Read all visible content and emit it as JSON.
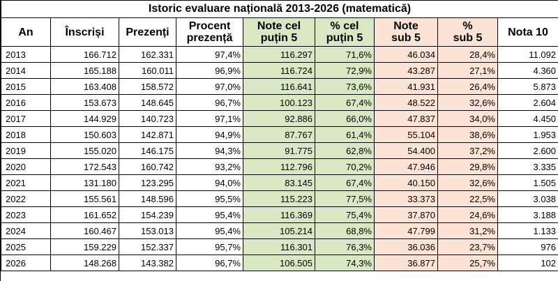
{
  "table": {
    "title": "Istoric evaluare națională 2013-2026 (matematică)",
    "headers": [
      [
        "An"
      ],
      [
        "Înscriși"
      ],
      [
        "Prezenți"
      ],
      [
        "Procent",
        "prezență"
      ],
      [
        "Note cel",
        "puțin 5"
      ],
      [
        "% cel",
        "puțin 5"
      ],
      [
        "Note",
        "sub 5"
      ],
      [
        "%",
        "sub 5"
      ],
      [
        "Nota 10"
      ]
    ],
    "rows": [
      [
        "2013",
        "166.712",
        "162.331",
        "97,4%",
        "116.297",
        "71,6%",
        "46.034",
        "28,4%",
        "11.092"
      ],
      [
        "2014",
        "165.188",
        "160.011",
        "96,9%",
        "116.724",
        "72,9%",
        "43.287",
        "27,1%",
        "4.360"
      ],
      [
        "2015",
        "163.408",
        "158.572",
        "97,0%",
        "116.641",
        "73,6%",
        "41.931",
        "26,4%",
        "5.873"
      ],
      [
        "2016",
        "153.673",
        "148.645",
        "96,7%",
        "100.123",
        "67,4%",
        "48.522",
        "32,6%",
        "2.604"
      ],
      [
        "2017",
        "144.929",
        "140.723",
        "97,1%",
        "92.886",
        "66,0%",
        "47.837",
        "34,0%",
        "4.450"
      ],
      [
        "2018",
        "150.603",
        "142.871",
        "94,9%",
        "87.767",
        "61,4%",
        "55.104",
        "38,6%",
        "1.953"
      ],
      [
        "2019",
        "155.020",
        "146.175",
        "94,3%",
        "91.775",
        "62,8%",
        "54.400",
        "37,2%",
        "2.600"
      ],
      [
        "2020",
        "172.543",
        "160.742",
        "93,2%",
        "112.796",
        "70,2%",
        "47.946",
        "29,8%",
        "3.335"
      ],
      [
        "2021",
        "131.180",
        "123.295",
        "94,0%",
        "83.145",
        "67,4%",
        "40.150",
        "32,6%",
        "1.505"
      ],
      [
        "2022",
        "155.561",
        "148.596",
        "95,5%",
        "115.223",
        "77,5%",
        "33.373",
        "22,5%",
        "3.038"
      ],
      [
        "2023",
        "161.652",
        "154.239",
        "95,4%",
        "116.369",
        "75,4%",
        "37.870",
        "24,6%",
        "3.188"
      ],
      [
        "2024",
        "160.467",
        "153.013",
        "95,4%",
        "105.214",
        "68,8%",
        "47.799",
        "31,2%",
        "1.133"
      ],
      [
        "2025",
        "159.229",
        "152.337",
        "95,7%",
        "116.301",
        "76,3%",
        "36.036",
        "23,7%",
        "976"
      ],
      [
        "2026",
        "148.268",
        "143.382",
        "96,7%",
        "106.505",
        "74,3%",
        "36.877",
        "25,7%",
        "102"
      ]
    ]
  },
  "colors": {
    "pass_fill": "#d9e8c4",
    "fail_fill": "#fbe3d6",
    "grid": "#000000"
  }
}
